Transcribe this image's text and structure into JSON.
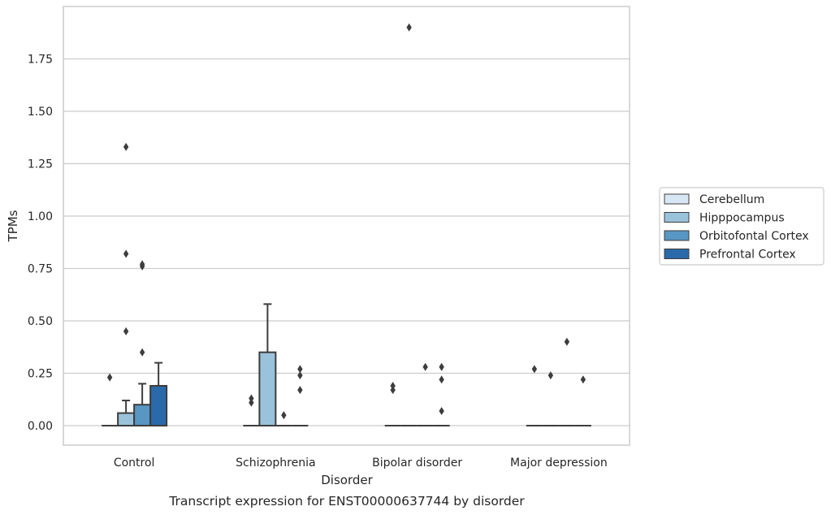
{
  "chart_data": {
    "type": "box",
    "title": "",
    "caption": "Transcript expression for ENST00000637744 by disorder",
    "xlabel": "Disorder",
    "ylabel": "TPMs",
    "ylim": [
      -0.09,
      1.99
    ],
    "yticks": [
      0.0,
      0.25,
      0.5,
      0.75,
      1.0,
      1.25,
      1.5,
      1.75
    ],
    "ytick_labels": [
      "0.00",
      "0.25",
      "0.50",
      "0.75",
      "1.00",
      "1.25",
      "1.50",
      "1.75"
    ],
    "grid": "horizontal",
    "legend_position": "right",
    "categories": [
      "Control",
      "Schizophrenia",
      "Bipolar disorder",
      "Major depression"
    ],
    "series": [
      {
        "name": "Cerebellum",
        "color": "#d8e7f4",
        "boxes": [
          {
            "q1": 0,
            "median": 0,
            "q3": 0,
            "whisker_low": 0,
            "whisker_high": 0,
            "outliers": [
              0.23
            ]
          },
          {
            "q1": 0,
            "median": 0,
            "q3": 0,
            "whisker_low": 0,
            "whisker_high": 0,
            "outliers": [
              0.11,
              0.13
            ]
          },
          {
            "q1": 0,
            "median": 0,
            "q3": 0,
            "whisker_low": 0,
            "whisker_high": 0,
            "outliers": [
              0.17,
              0.19
            ]
          },
          {
            "q1": 0,
            "median": 0,
            "q3": 0,
            "whisker_low": 0,
            "whisker_high": 0,
            "outliers": [
              0.27
            ]
          }
        ]
      },
      {
        "name": "Hipppocampus",
        "color": "#9ac2db",
        "boxes": [
          {
            "q1": 0,
            "median": 0,
            "q3": 0.06,
            "whisker_low": 0,
            "whisker_high": 0.12,
            "outliers": [
              0.45,
              0.82,
              1.33
            ]
          },
          {
            "q1": 0,
            "median": 0,
            "q3": 0.35,
            "whisker_low": 0,
            "whisker_high": 0.58,
            "outliers": []
          },
          {
            "q1": 0,
            "median": 0,
            "q3": 0,
            "whisker_low": 0,
            "whisker_high": 0,
            "outliers": [
              1.9
            ]
          },
          {
            "q1": 0,
            "median": 0,
            "q3": 0,
            "whisker_low": 0,
            "whisker_high": 0,
            "outliers": [
              0.24
            ]
          }
        ]
      },
      {
        "name": "Orbitofontal Cortex",
        "color": "#5896c3",
        "boxes": [
          {
            "q1": 0,
            "median": 0,
            "q3": 0.1,
            "whisker_low": 0,
            "whisker_high": 0.2,
            "outliers": [
              0.35,
              0.76,
              0.77
            ]
          },
          {
            "q1": 0,
            "median": 0,
            "q3": 0,
            "whisker_low": 0,
            "whisker_high": 0,
            "outliers": [
              0.05
            ]
          },
          {
            "q1": 0,
            "median": 0,
            "q3": 0,
            "whisker_low": 0,
            "whisker_high": 0,
            "outliers": [
              0.28
            ]
          },
          {
            "q1": 0,
            "median": 0,
            "q3": 0,
            "whisker_low": 0,
            "whisker_high": 0,
            "outliers": [
              0.4
            ]
          }
        ]
      },
      {
        "name": "Prefrontal Cortex",
        "color": "#2a6aaa",
        "boxes": [
          {
            "q1": 0,
            "median": 0,
            "q3": 0.19,
            "whisker_low": 0,
            "whisker_high": 0.3,
            "outliers": []
          },
          {
            "q1": 0,
            "median": 0,
            "q3": 0,
            "whisker_low": 0,
            "whisker_high": 0,
            "outliers": [
              0.17,
              0.24,
              0.27
            ]
          },
          {
            "q1": 0,
            "median": 0,
            "q3": 0,
            "whisker_low": 0,
            "whisker_high": 0,
            "outliers": [
              0.07,
              0.22,
              0.28
            ]
          },
          {
            "q1": 0,
            "median": 0,
            "q3": 0,
            "whisker_low": 0,
            "whisker_high": 0,
            "outliers": [
              0.22
            ]
          }
        ]
      }
    ]
  }
}
